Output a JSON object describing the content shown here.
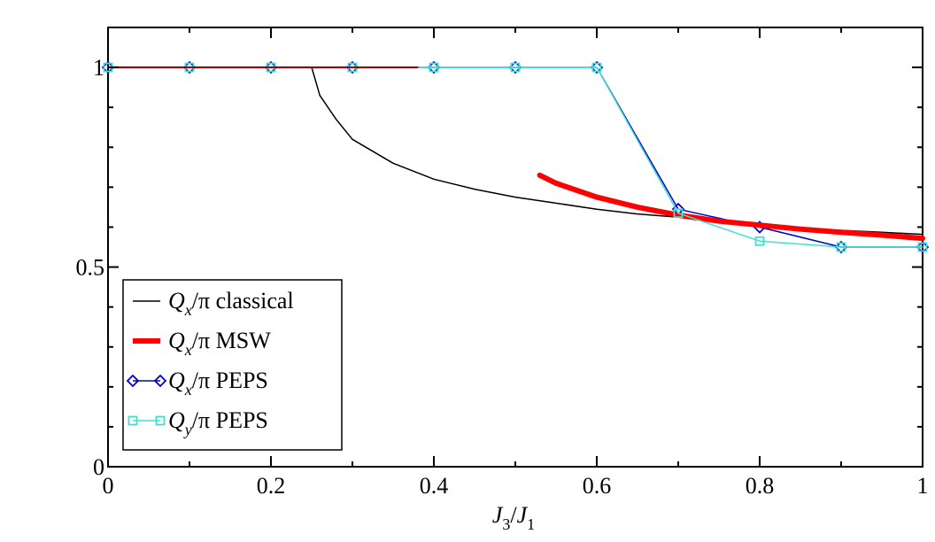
{
  "chart_data": {
    "type": "line",
    "title": "",
    "xlabel": {
      "main": "J",
      "sub1": "3",
      "slash": "/",
      "main2": "J",
      "sub2": "1"
    },
    "ylabel": "",
    "xlim": [
      0,
      1
    ],
    "ylim": [
      0,
      1.1
    ],
    "x_ticks": [
      0,
      0.2,
      0.4,
      0.6,
      0.8,
      1
    ],
    "x_tick_labels": [
      "0",
      "0.2",
      "0.4",
      "0.6",
      "0.8",
      "1"
    ],
    "y_ticks": [
      0,
      0.5,
      1
    ],
    "y_tick_labels": [
      "0",
      "0.5",
      "1"
    ],
    "legend_position": "bottom-left",
    "series": [
      {
        "name": "classical",
        "legend": {
          "var": "Q",
          "sub": "x",
          "rest": "/π classical"
        },
        "color": "#000000",
        "marker": "none",
        "points": [
          [
            0,
            1
          ],
          [
            0.25,
            1
          ],
          [
            0.26,
            0.93
          ],
          [
            0.28,
            0.87
          ],
          [
            0.3,
            0.82
          ],
          [
            0.35,
            0.76
          ],
          [
            0.4,
            0.72
          ],
          [
            0.45,
            0.695
          ],
          [
            0.5,
            0.675
          ],
          [
            0.55,
            0.66
          ],
          [
            0.6,
            0.645
          ],
          [
            0.65,
            0.633
          ],
          [
            0.7,
            0.625
          ],
          [
            0.75,
            0.615
          ],
          [
            0.8,
            0.605
          ],
          [
            0.85,
            0.597
          ],
          [
            0.9,
            0.592
          ],
          [
            0.95,
            0.587
          ],
          [
            1,
            0.582
          ]
        ]
      },
      {
        "name": "classical-flat",
        "legend": null,
        "color": "#8b0000",
        "marker": "none",
        "points": [
          [
            0,
            1
          ],
          [
            0.38,
            1
          ]
        ]
      },
      {
        "name": "MSW",
        "legend": {
          "var": "Q",
          "sub": "x",
          "rest": "/π MSW"
        },
        "color": "#ff0000",
        "marker": "none",
        "points": [
          [
            0.53,
            0.73
          ],
          [
            0.55,
            0.71
          ],
          [
            0.6,
            0.675
          ],
          [
            0.65,
            0.65
          ],
          [
            0.7,
            0.63
          ],
          [
            0.75,
            0.615
          ],
          [
            0.8,
            0.605
          ],
          [
            0.85,
            0.595
          ],
          [
            0.9,
            0.587
          ],
          [
            0.95,
            0.58
          ],
          [
            1,
            0.572
          ]
        ]
      },
      {
        "name": "Qx PEPS",
        "legend": {
          "var": "Q",
          "sub": "x",
          "rest": "/π PEPS"
        },
        "color": "#0000cd",
        "marker": "diamond",
        "points": [
          [
            0,
            1
          ],
          [
            0.1,
            1
          ],
          [
            0.2,
            1
          ],
          [
            0.3,
            1
          ],
          [
            0.4,
            1
          ],
          [
            0.5,
            1
          ],
          [
            0.6,
            1
          ],
          [
            0.7,
            0.645
          ],
          [
            0.8,
            0.6
          ],
          [
            0.9,
            0.55
          ],
          [
            1,
            0.55
          ]
        ]
      },
      {
        "name": "Qy PEPS",
        "legend": {
          "var": "Q",
          "sub": "y",
          "rest": "/π PEPS"
        },
        "color": "#40e0d0",
        "marker": "square",
        "points": [
          [
            0,
            1
          ],
          [
            0.1,
            1
          ],
          [
            0.2,
            1
          ],
          [
            0.3,
            1
          ],
          [
            0.4,
            1
          ],
          [
            0.5,
            1
          ],
          [
            0.6,
            1
          ],
          [
            0.7,
            0.635
          ],
          [
            0.8,
            0.565
          ],
          [
            0.9,
            0.55
          ],
          [
            1,
            0.55
          ]
        ]
      }
    ]
  }
}
